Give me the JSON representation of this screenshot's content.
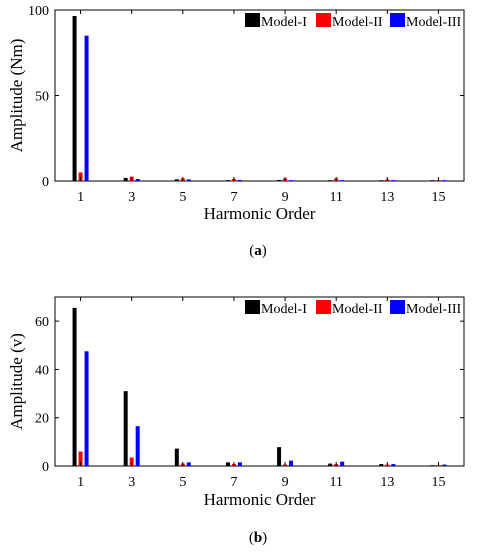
{
  "chart_data": [
    {
      "type": "bar",
      "caption_open": "(",
      "caption_letter": "a",
      "caption_close": ")",
      "xlabel": "Harmonic Order",
      "ylabel": "Amplitude (Nm)",
      "categories": [
        "1",
        "3",
        "5",
        "7",
        "9",
        "11",
        "13",
        "15"
      ],
      "ylim": [
        0,
        100
      ],
      "yticks": [
        "0",
        "50",
        "100"
      ],
      "legend_position": "top-right",
      "series": [
        {
          "name": "Model-I",
          "color": "#000000",
          "values": [
            96.5,
            1.8,
            1.0,
            0.5,
            0.6,
            0.4,
            0.3,
            0.2
          ]
        },
        {
          "name": "Model-II",
          "color": "#ff0000",
          "values": [
            5.0,
            2.5,
            1.5,
            1.2,
            1.5,
            1.5,
            0.9,
            0.5
          ]
        },
        {
          "name": "Model-III",
          "color": "#0000ff",
          "values": [
            85.0,
            1.2,
            0.9,
            0.6,
            0.4,
            0.4,
            0.3,
            0.2
          ]
        }
      ]
    },
    {
      "type": "bar",
      "caption_open": "(",
      "caption_letter": "b",
      "caption_close": ")",
      "xlabel": "Harmonic Order",
      "ylabel": "Amplitude (v)",
      "categories": [
        "1",
        "3",
        "5",
        "7",
        "9",
        "11",
        "13",
        "15"
      ],
      "ylim": [
        0,
        70
      ],
      "yticks": [
        "0",
        "20",
        "40",
        "60"
      ],
      "legend_position": "top-right",
      "series": [
        {
          "name": "Model-I",
          "color": "#000000",
          "values": [
            65.5,
            31.0,
            7.2,
            1.5,
            7.8,
            1.0,
            0.8,
            0.3
          ]
        },
        {
          "name": "Model-II",
          "color": "#ff0000",
          "values": [
            6.0,
            3.5,
            1.0,
            0.8,
            0.6,
            0.8,
            0.6,
            0.3
          ]
        },
        {
          "name": "Model-III",
          "color": "#0000ff",
          "values": [
            47.5,
            16.5,
            1.5,
            1.5,
            2.2,
            1.8,
            0.8,
            0.6
          ]
        }
      ]
    }
  ]
}
